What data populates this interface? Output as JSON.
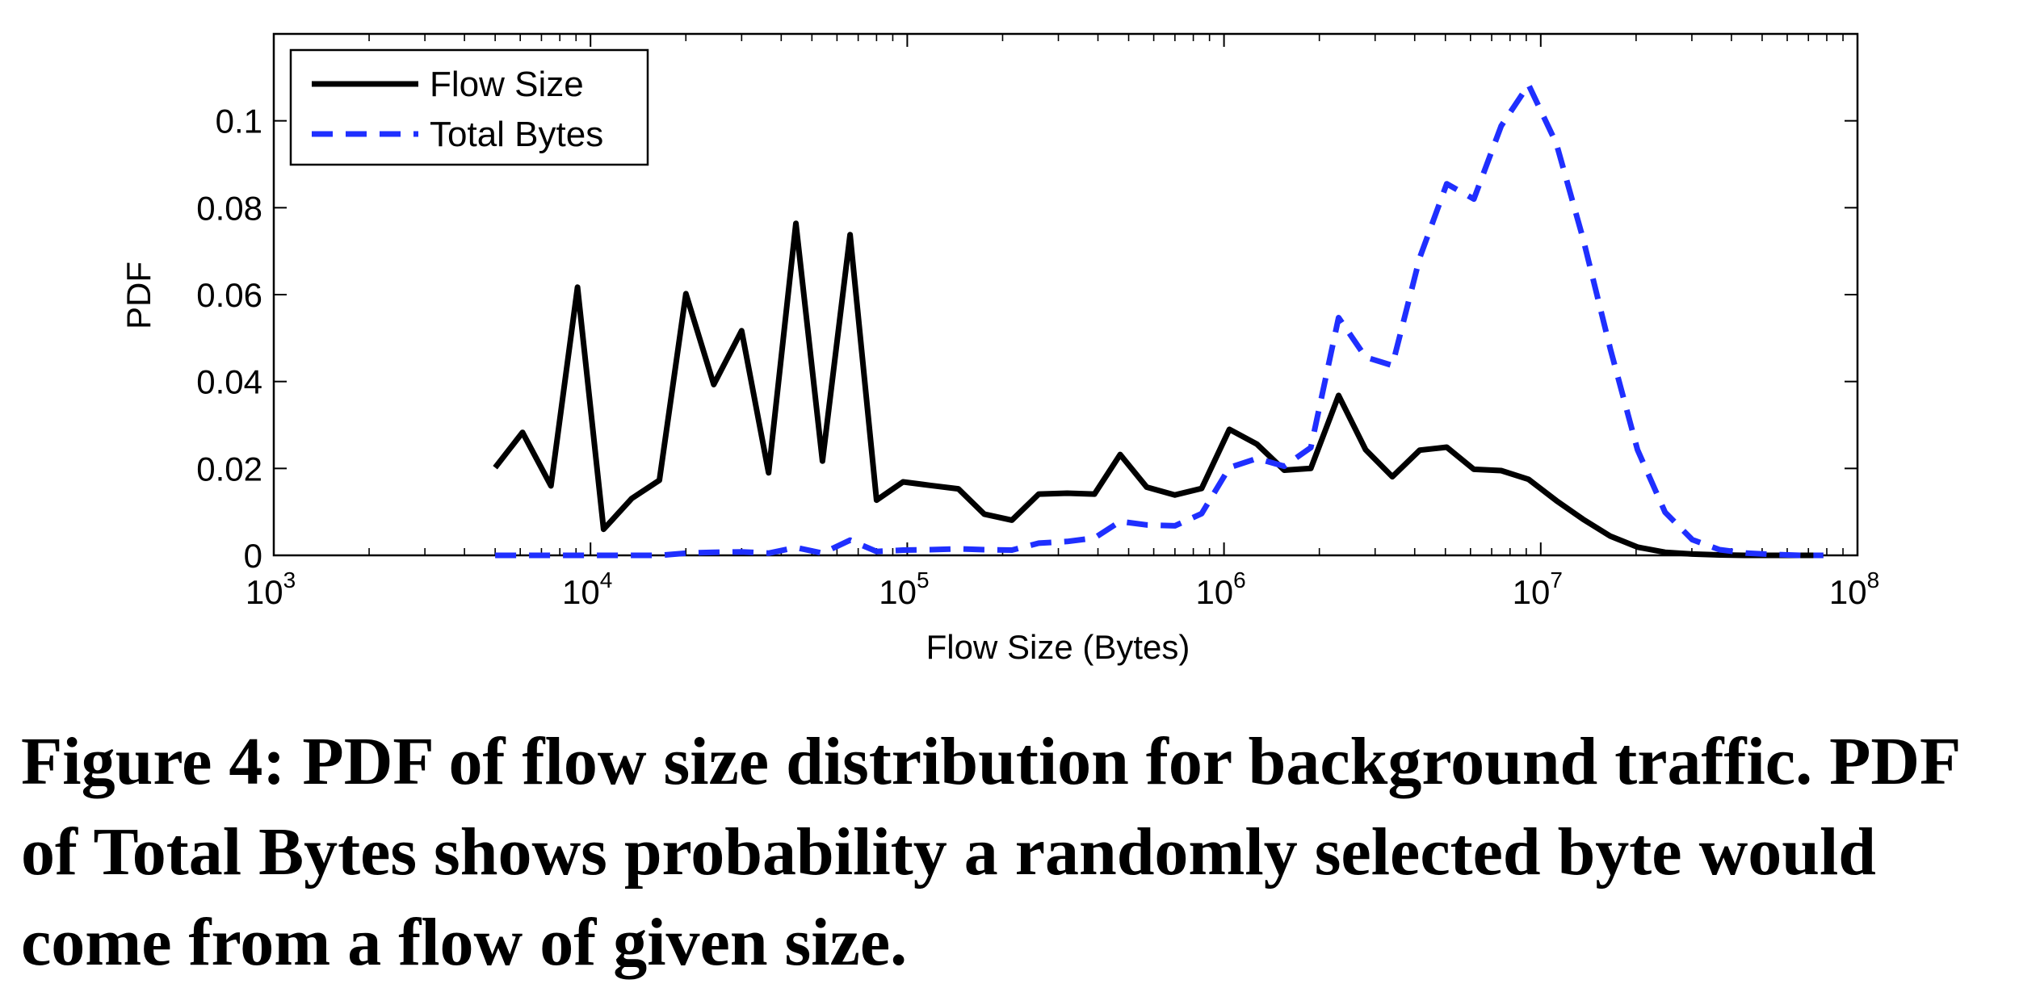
{
  "caption": "Figure 4: PDF of flow size distribution for background traffic. PDF of Total Bytes shows probability a randomly selected byte would come from a flow of given size.",
  "chart_data": {
    "type": "line",
    "xlabel": "Flow Size (Bytes)",
    "ylabel": "PDF",
    "xscale": "log",
    "xlim": [
      1000,
      100000000
    ],
    "ylim": [
      0,
      0.12
    ],
    "xticks": [
      {
        "value": 1000,
        "base": "10",
        "exp": "3"
      },
      {
        "value": 10000,
        "base": "10",
        "exp": "4"
      },
      {
        "value": 100000,
        "base": "10",
        "exp": "5"
      },
      {
        "value": 1000000,
        "base": "10",
        "exp": "6"
      },
      {
        "value": 10000000,
        "base": "10",
        "exp": "7"
      },
      {
        "value": 100000000,
        "base": "10",
        "exp": "8"
      }
    ],
    "yticks": [
      {
        "value": 0,
        "label": "0"
      },
      {
        "value": 0.02,
        "label": "0.02"
      },
      {
        "value": 0.04,
        "label": "0.04"
      },
      {
        "value": 0.06,
        "label": "0.06"
      },
      {
        "value": 0.08,
        "label": "0.08"
      },
      {
        "value": 0.1,
        "label": "0.1"
      }
    ],
    "grid": false,
    "legend_position": "top-left",
    "series": [
      {
        "name": "Flow Size",
        "color": "#000000",
        "dash": "solid",
        "x": [
          5000,
          6100,
          7500,
          9100,
          11000,
          13500,
          16500,
          20000,
          24500,
          30000,
          36500,
          44500,
          54000,
          66000,
          80000,
          97000,
          118000,
          145000,
          175000,
          214000,
          260000,
          320000,
          390000,
          470000,
          570000,
          700000,
          850000,
          1040000,
          1270000,
          1550000,
          1880000,
          2300000,
          2800000,
          3400000,
          4150000,
          5050000,
          6150000,
          7500000,
          9150000,
          11200000,
          13600000,
          16600000,
          20200000,
          24700000,
          30100000,
          36700000,
          44700000,
          54500000,
          66400000,
          78000000
        ],
        "y": [
          0.0202,
          0.0283,
          0.016,
          0.0617,
          0.006,
          0.0131,
          0.0173,
          0.0602,
          0.0393,
          0.0517,
          0.019,
          0.0764,
          0.0217,
          0.0738,
          0.0127,
          0.0169,
          0.0161,
          0.0153,
          0.0095,
          0.0081,
          0.0141,
          0.0143,
          0.0141,
          0.0232,
          0.0157,
          0.0139,
          0.0154,
          0.029,
          0.0256,
          0.0196,
          0.02,
          0.0368,
          0.0243,
          0.0181,
          0.0242,
          0.0249,
          0.0198,
          0.0195,
          0.0175,
          0.0126,
          0.0083,
          0.0044,
          0.0019,
          0.0007,
          0.0003,
          0.0001,
          0.0,
          0.0,
          0.0,
          0.0
        ]
      },
      {
        "name": "Total Bytes",
        "color": "#1f2fff",
        "dash": "dashed",
        "x": [
          5000,
          6100,
          7500,
          9100,
          11000,
          13500,
          16500,
          20000,
          24500,
          30000,
          36500,
          44500,
          54000,
          66000,
          80000,
          97000,
          118000,
          145000,
          175000,
          214000,
          260000,
          320000,
          390000,
          470000,
          570000,
          700000,
          850000,
          1040000,
          1270000,
          1550000,
          1880000,
          2300000,
          2800000,
          3400000,
          4150000,
          5050000,
          6150000,
          7500000,
          9150000,
          11200000,
          13600000,
          16600000,
          20200000,
          24700000,
          30100000,
          36700000,
          44700000,
          54500000,
          66400000,
          78000000
        ],
        "y": [
          0.0,
          0.0,
          0.0,
          0.0,
          0.0,
          0.0,
          0.0,
          0.0005,
          0.0007,
          0.0008,
          0.0005,
          0.0018,
          0.0005,
          0.0035,
          0.0009,
          0.0012,
          0.0013,
          0.0015,
          0.0013,
          0.0012,
          0.0028,
          0.0032,
          0.004,
          0.0078,
          0.007,
          0.0068,
          0.0096,
          0.0202,
          0.0223,
          0.0205,
          0.0248,
          0.0547,
          0.0456,
          0.0437,
          0.0685,
          0.0855,
          0.082,
          0.0988,
          0.1083,
          0.0948,
          0.0729,
          0.0474,
          0.0243,
          0.0099,
          0.0036,
          0.0013,
          0.0005,
          0.0002,
          0.0,
          0.0
        ]
      }
    ]
  }
}
